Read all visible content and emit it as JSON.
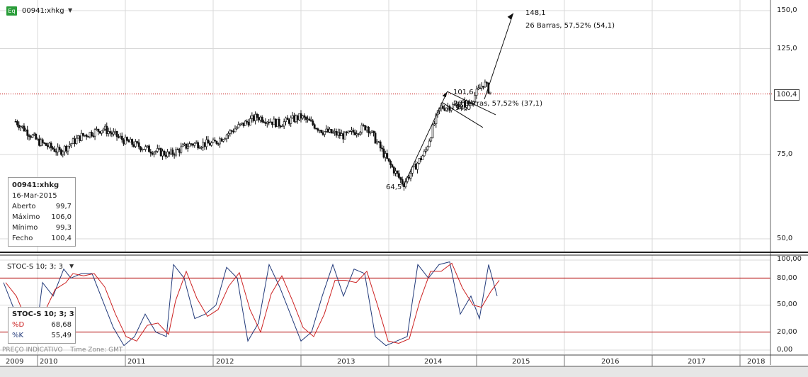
{
  "symbol": "00941:xhkg",
  "symbol_badge": "Eq",
  "stoch_title": "STOC-S 10; 3; 3",
  "info_box": {
    "title": "00941:xhkg",
    "date": "16-Mar-2015",
    "rows": [
      {
        "label": "Aberto",
        "value": "99,7"
      },
      {
        "label": "Máximo",
        "value": "106,0"
      },
      {
        "label": "Mínimo",
        "value": "99,3"
      },
      {
        "label": "Fecho",
        "value": "100,4"
      }
    ]
  },
  "stoch_box": {
    "title": "STOC-S 10; 3; 3",
    "rows": [
      {
        "label": "%D",
        "value": "68,68"
      },
      {
        "label": "%K",
        "value": "55,49"
      }
    ]
  },
  "footer": {
    "indicative": "PREÇO INDICATIVO",
    "timezone": "Time Zone: GMT"
  },
  "last_price": "100,4",
  "annotations": {
    "target_price": "148,1",
    "target_bars": "26 Barras, 57,52% (54,1)",
    "low_label": "64,5",
    "high_label": "101,6",
    "mid_label": "94,0",
    "mid_bars": "26 Barras, 57,52% (37,1)"
  },
  "colors": {
    "grid": "#d9d9d9",
    "up_candle": "#ffffff",
    "down_candle": "#111111",
    "stoch_d": "#cc2222",
    "stoch_k": "#223a7a",
    "last_line": "#c00000",
    "level_line": "#b00000",
    "badge": "#2a9d3a"
  },
  "chart_data": [
    {
      "type": "candlestick",
      "title": "00941:xhkg",
      "y_scale": "log",
      "y_ticks": [
        "150,0",
        "125,0",
        "75,0",
        "50,0"
      ],
      "y_tick_values": [
        150,
        125,
        75,
        50
      ],
      "x_ticks": [
        "2009",
        "2010",
        "2011",
        "2012",
        "2013",
        "2014",
        "2015",
        "2016",
        "2017",
        "2018"
      ],
      "grid": true,
      "ohlc_last": {
        "date": "16-Mar-2015",
        "open": 99.7,
        "high": 106.0,
        "low": 99.3,
        "close": 100.4
      },
      "series_close_approx": [
        {
          "x": "2009-10",
          "y": 88
        },
        {
          "x": "2010-01",
          "y": 80
        },
        {
          "x": "2010-04",
          "y": 76
        },
        {
          "x": "2010-07",
          "y": 82
        },
        {
          "x": "2010-10",
          "y": 85
        },
        {
          "x": "2011-01",
          "y": 80
        },
        {
          "x": "2011-04",
          "y": 77
        },
        {
          "x": "2011-07",
          "y": 75
        },
        {
          "x": "2011-10",
          "y": 79
        },
        {
          "x": "2012-01",
          "y": 79
        },
        {
          "x": "2012-04",
          "y": 85
        },
        {
          "x": "2012-07",
          "y": 90
        },
        {
          "x": "2012-10",
          "y": 87
        },
        {
          "x": "2013-01",
          "y": 90
        },
        {
          "x": "2013-04",
          "y": 84
        },
        {
          "x": "2013-07",
          "y": 82
        },
        {
          "x": "2013-10",
          "y": 86
        },
        {
          "x": "2014-01",
          "y": 72
        },
        {
          "x": "2014-03",
          "y": 65
        },
        {
          "x": "2014-06",
          "y": 76
        },
        {
          "x": "2014-08",
          "y": 94
        },
        {
          "x": "2014-10",
          "y": 95
        },
        {
          "x": "2014-12",
          "y": 96
        },
        {
          "x": "2015-02",
          "y": 106
        },
        {
          "x": "2015-03",
          "y": 100.4
        }
      ],
      "trend_points": [
        {
          "label": "64,5",
          "x": "2014-03",
          "y": 64.5
        },
        {
          "label": "101,6",
          "x": "2014-09",
          "y": 101.6
        },
        {
          "label": "94,0",
          "x": "2014-10",
          "y": 94.0
        },
        {
          "label": "148,1",
          "x": "2015-06",
          "y": 148.1
        }
      ]
    },
    {
      "type": "line",
      "title": "STOC-S 10; 3; 3",
      "y_ticks": [
        "100,00",
        "80,00",
        "50,00",
        "20,00",
        "0,00"
      ],
      "y_tick_values": [
        100,
        80,
        50,
        20,
        0
      ],
      "levels": [
        80,
        20
      ],
      "series": [
        {
          "name": "%D",
          "last": 68.68
        },
        {
          "name": "%K",
          "last": 55.49
        }
      ]
    }
  ]
}
